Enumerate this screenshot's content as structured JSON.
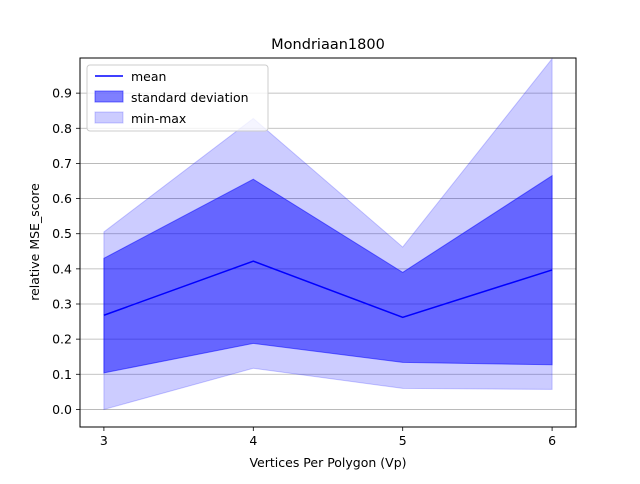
{
  "chart_data": {
    "type": "area",
    "title": "Mondriaan1800",
    "xlabel": "Vertices Per Polygon (Vp)",
    "ylabel": "relative MSE_score",
    "x": [
      3,
      4,
      5,
      6
    ],
    "x_ticks": [
      "3",
      "4",
      "5",
      "6"
    ],
    "y_ticks": [
      "0.0",
      "0.1",
      "0.2",
      "0.3",
      "0.4",
      "0.5",
      "0.6",
      "0.7",
      "0.8",
      "0.9"
    ],
    "xlim": [
      2.84,
      6.16
    ],
    "ylim": [
      -0.05,
      1.0
    ],
    "grid": "horizontal",
    "legend_position": "top-left",
    "series": [
      {
        "name": "mean",
        "kind": "line",
        "values": [
          0.268,
          0.422,
          0.262,
          0.397
        ],
        "color": "#0000ff"
      },
      {
        "name": "standard deviation",
        "kind": "band",
        "lower": [
          0.104,
          0.188,
          0.134,
          0.127
        ],
        "upper": [
          0.43,
          0.655,
          0.39,
          0.665
        ],
        "color": "#0000ff",
        "opacity": 0.5
      },
      {
        "name": "min-max",
        "kind": "band",
        "lower": [
          0.0,
          0.117,
          0.06,
          0.057
        ],
        "upper": [
          0.505,
          0.828,
          0.462,
          0.998
        ],
        "color": "#0000ff",
        "opacity": 0.2
      }
    ],
    "legend": [
      "mean",
      "standard deviation",
      "min-max"
    ]
  }
}
